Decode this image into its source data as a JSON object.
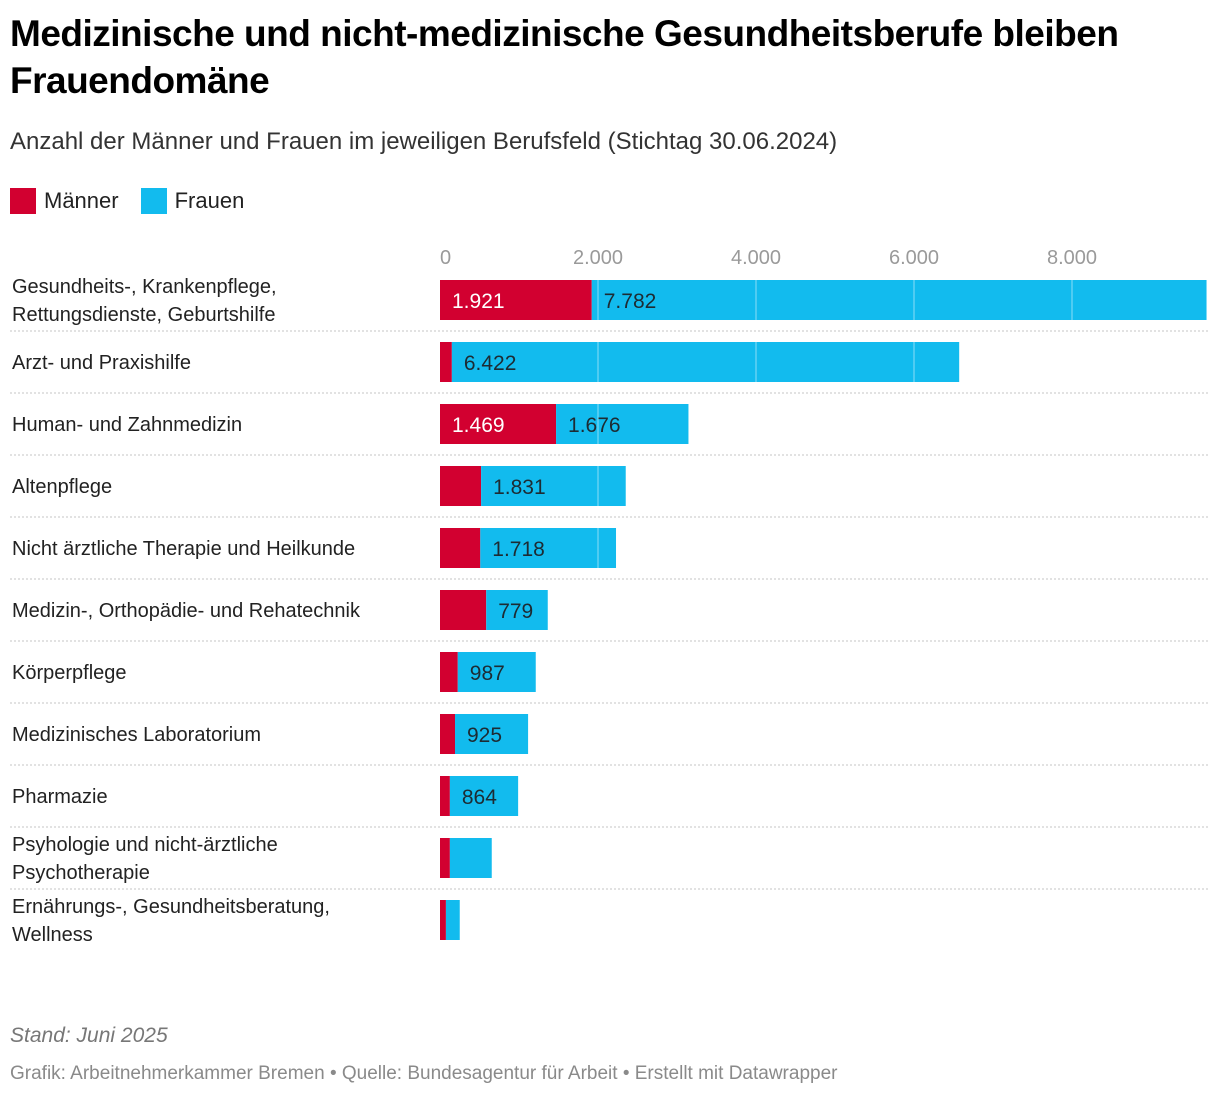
{
  "header": {
    "title": "Medizinische und nicht-medizinische Gesundheitsberufe bleiben Frauendomäne",
    "subtitle": "Anzahl der Männer und Frauen im jeweiligen Berufsfeld (Stichtag 30.06.2024)"
  },
  "legend": [
    {
      "label": "Männer",
      "color": "#d20030"
    },
    {
      "label": "Frauen",
      "color": "#12bbee"
    }
  ],
  "footer": {
    "note": "Stand: Juni 2025",
    "credits": "Grafik: Arbeitnehmerkammer Bremen • Quelle: Bundesagentur für Arbeit • Erstellt mit Datawrapper"
  },
  "chart_data": {
    "type": "bar",
    "orientation": "horizontal",
    "stacked": true,
    "title": "Medizinische und nicht-medizinische Gesundheitsberufe bleiben Frauendomäne",
    "subtitle": "Anzahl der Männer und Frauen im jeweiligen Berufsfeld (Stichtag 30.06.2024)",
    "xlabel": "",
    "ylabel": "",
    "xlim": [
      0,
      9703
    ],
    "x_ticks": [
      0,
      2000,
      4000,
      6000,
      8000
    ],
    "x_tick_labels": [
      "0",
      "2.000",
      "4.000",
      "6.000",
      "8.000"
    ],
    "legend_position": "top-left",
    "grid": true,
    "categories": [
      [
        "Gesundheits-, Krankenpflege,",
        "Rettungsdienste, Geburtshilfe"
      ],
      [
        "Arzt- und Praxishilfe"
      ],
      [
        "Human- und Zahnmedizin"
      ],
      [
        "Altenpflege"
      ],
      [
        "Nicht ärztliche Therapie und Heilkunde"
      ],
      [
        "Medizin-, Orthopädie- und Rehatechnik"
      ],
      [
        "Körperpflege"
      ],
      [
        "Medizinisches Laboratorium"
      ],
      [
        "Pharmazie"
      ],
      [
        "Psyhologie und nicht-ärztliche",
        "Psychotherapie"
      ],
      [
        "Ernährungs-, Gesundheitsberatung,",
        "Wellness"
      ]
    ],
    "series": [
      {
        "name": "Männer",
        "color": "#d20030",
        "values": [
          1921,
          150,
          1469,
          520,
          510,
          585,
          225,
          190,
          125,
          125,
          75
        ],
        "labels": [
          "1.921",
          "",
          "1.469",
          "",
          "",
          "",
          "",
          "",
          "",
          "",
          ""
        ]
      },
      {
        "name": "Frauen",
        "color": "#12bbee",
        "values": [
          7782,
          6422,
          1676,
          1831,
          1718,
          779,
          987,
          925,
          864,
          530,
          175
        ],
        "labels": [
          "7.782",
          "6.422",
          "1.676",
          "1.831",
          "1.718",
          "779",
          "987",
          "925",
          "864",
          "",
          ""
        ]
      }
    ]
  }
}
